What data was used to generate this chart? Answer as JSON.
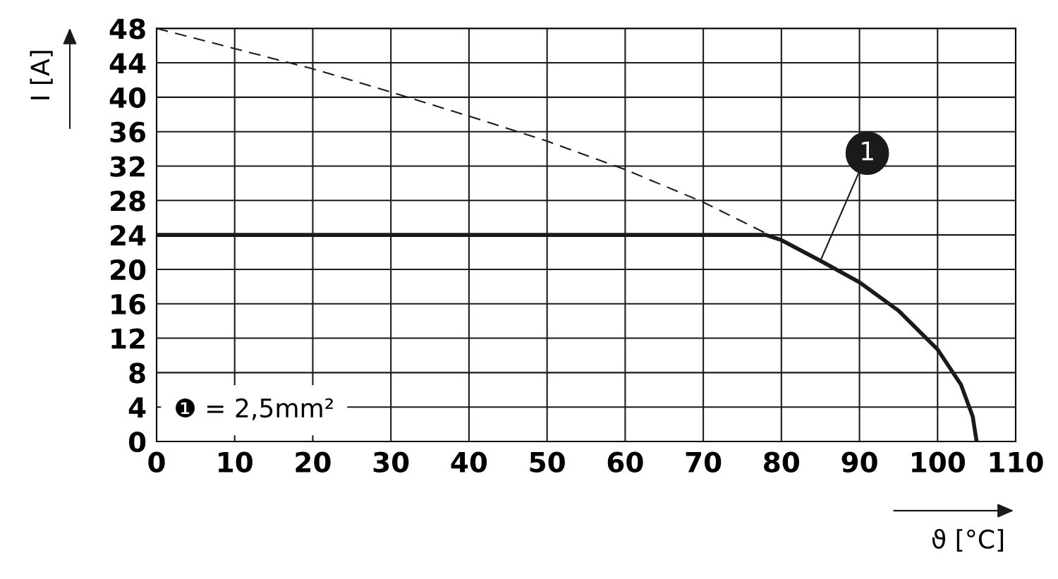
{
  "chart_data": {
    "type": "line",
    "xlabel": "ϑ [°C]",
    "ylabel": "I [A]",
    "xlim": [
      0,
      110
    ],
    "xticks": [
      0,
      10,
      20,
      30,
      40,
      50,
      60,
      70,
      80,
      90,
      100,
      110
    ],
    "ylim": [
      0,
      48
    ],
    "yticks": [
      0,
      4,
      8,
      12,
      16,
      20,
      24,
      28,
      32,
      36,
      40,
      44,
      48
    ],
    "grid": true,
    "marker": "none",
    "series": [
      {
        "color": "#1a1a1a",
        "line_style": "dashed",
        "x": [
          0,
          20,
          30,
          40,
          50,
          60,
          70,
          78
        ],
        "values": [
          48,
          43.3,
          40.6,
          37.8,
          34.9,
          31.6,
          27.8,
          24.2
        ]
      },
      {
        "color": "#1a1a1a",
        "line_style": "solid",
        "x": [
          0,
          78,
          80,
          85,
          90,
          95,
          100,
          103,
          104.5,
          105
        ],
        "values": [
          24,
          24,
          23.4,
          21,
          18.5,
          15.2,
          10.7,
          6.6,
          2.9,
          0
        ]
      }
    ],
    "annotations": [
      {
        "text": "1",
        "x": 85,
        "y": 21
      },
      "❶ = 2,5mm²"
    ]
  }
}
